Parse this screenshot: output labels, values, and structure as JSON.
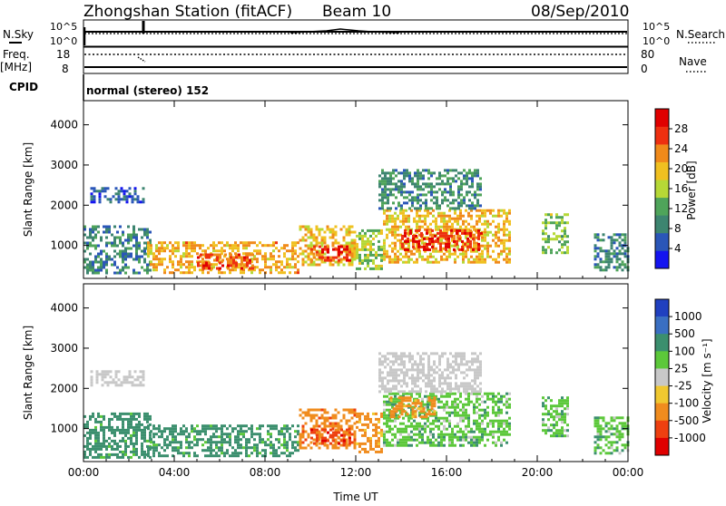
{
  "header": {
    "station": "Zhongshan Station (fitACF)",
    "beam": "Beam 10",
    "date": "08/Sep/2010"
  },
  "panels": {
    "nsky_label": "N.Sky",
    "nsky_top": "10^5",
    "nsky_bottom": "10^0",
    "nsearch_top": "10^5",
    "nsearch_bottom": "10^0",
    "nsearch_label": "N.Search",
    "freq_label": "Freq.",
    "freq_unit": "[MHz]",
    "freq_top": "18",
    "freq_bottom": "8",
    "nave_top": "80",
    "nave_bottom": "0",
    "nave_label": "Nave",
    "cpid_label": "CPID",
    "cpid_text": "normal (stereo) 152"
  },
  "chart_data": [
    {
      "type": "heatmap",
      "title": "",
      "xlabel": "",
      "ylabel": "Slant Range [km]",
      "xlim": [
        0,
        24
      ],
      "ylim": [
        180,
        4600
      ],
      "yticks": [
        "1000",
        "2000",
        "3000",
        "4000"
      ],
      "colorbar": {
        "label": "Power [dB]",
        "range": [
          0,
          32
        ],
        "ticks": [
          "4",
          "8",
          "12",
          "16",
          "20",
          "24",
          "28"
        ],
        "colors": [
          "#1414f0",
          "#2a56b8",
          "#3d8570",
          "#4fa45a",
          "#b6d836",
          "#f0c020",
          "#f08a1a",
          "#ee3010",
          "#e00000"
        ]
      },
      "regions": [
        {
          "x": [
            0.0,
            3.0
          ],
          "y": [
            300,
            1500
          ],
          "value": 9
        },
        {
          "x": [
            0.3,
            2.6
          ],
          "y": [
            2050,
            2450
          ],
          "value": 6
        },
        {
          "x": [
            2.8,
            9.5
          ],
          "y": [
            350,
            1100
          ],
          "value": 21
        },
        {
          "x": [
            5.0,
            7.5
          ],
          "y": [
            400,
            800
          ],
          "value": 26
        },
        {
          "x": [
            9.5,
            12.0
          ],
          "y": [
            500,
            1500
          ],
          "value": 20
        },
        {
          "x": [
            10.0,
            11.8
          ],
          "y": [
            600,
            1000
          ],
          "value": 27
        },
        {
          "x": [
            12.0,
            13.2
          ],
          "y": [
            400,
            1400
          ],
          "value": 15
        },
        {
          "x": [
            13.2,
            18.8
          ],
          "y": [
            600,
            1900
          ],
          "value": 20
        },
        {
          "x": [
            14.0,
            17.5
          ],
          "y": [
            900,
            1400
          ],
          "value": 28
        },
        {
          "x": [
            13.0,
            17.5
          ],
          "y": [
            1900,
            2900
          ],
          "value": 10
        },
        {
          "x": [
            20.2,
            21.3
          ],
          "y": [
            800,
            1800
          ],
          "value": 14
        },
        {
          "x": [
            22.5,
            24.0
          ],
          "y": [
            400,
            1300
          ],
          "value": 9
        }
      ]
    },
    {
      "type": "heatmap",
      "title": "",
      "xlabel": "Time UT",
      "ylabel": "Slant Range [km]",
      "xlim": [
        0,
        24
      ],
      "ylim": [
        180,
        4600
      ],
      "xticks": [
        "00:00",
        "04:00",
        "08:00",
        "12:00",
        "16:00",
        "20:00",
        "00:00"
      ],
      "yticks": [
        "1000",
        "2000",
        "3000",
        "4000"
      ],
      "colorbar": {
        "label": "Velocity [m s⁻¹]",
        "ticks": [
          "1000",
          "500",
          "100",
          "25",
          "-25",
          "-100",
          "-500",
          "-1000"
        ],
        "colors": [
          "#2040c0",
          "#3a6fc2",
          "#3b8f6e",
          "#5cc83a",
          "#c8c8c8",
          "#f0c830",
          "#f08c1e",
          "#ee4010",
          "#e00000"
        ]
      },
      "regions": [
        {
          "x": [
            0.0,
            3.0
          ],
          "y": [
            300,
            1400
          ],
          "value": 150
        },
        {
          "x": [
            0.3,
            2.6
          ],
          "y": [
            2050,
            2450
          ],
          "value": 0
        },
        {
          "x": [
            2.8,
            9.5
          ],
          "y": [
            350,
            1100
          ],
          "value": 120
        },
        {
          "x": [
            9.5,
            12.0
          ],
          "y": [
            500,
            1500
          ],
          "value": -400
        },
        {
          "x": [
            10.0,
            11.8
          ],
          "y": [
            600,
            1000
          ],
          "value": -700
        },
        {
          "x": [
            12.0,
            13.2
          ],
          "y": [
            400,
            1400
          ],
          "value": -200
        },
        {
          "x": [
            13.2,
            18.8
          ],
          "y": [
            600,
            1900
          ],
          "value": 60
        },
        {
          "x": [
            13.5,
            15.5
          ],
          "y": [
            1300,
            1800
          ],
          "value": -200
        },
        {
          "x": [
            13.0,
            17.5
          ],
          "y": [
            1900,
            2900
          ],
          "value": 0
        },
        {
          "x": [
            20.2,
            21.3
          ],
          "y": [
            800,
            1800
          ],
          "value": 80
        },
        {
          "x": [
            22.5,
            24.0
          ],
          "y": [
            400,
            1300
          ],
          "value": 80
        }
      ]
    }
  ]
}
